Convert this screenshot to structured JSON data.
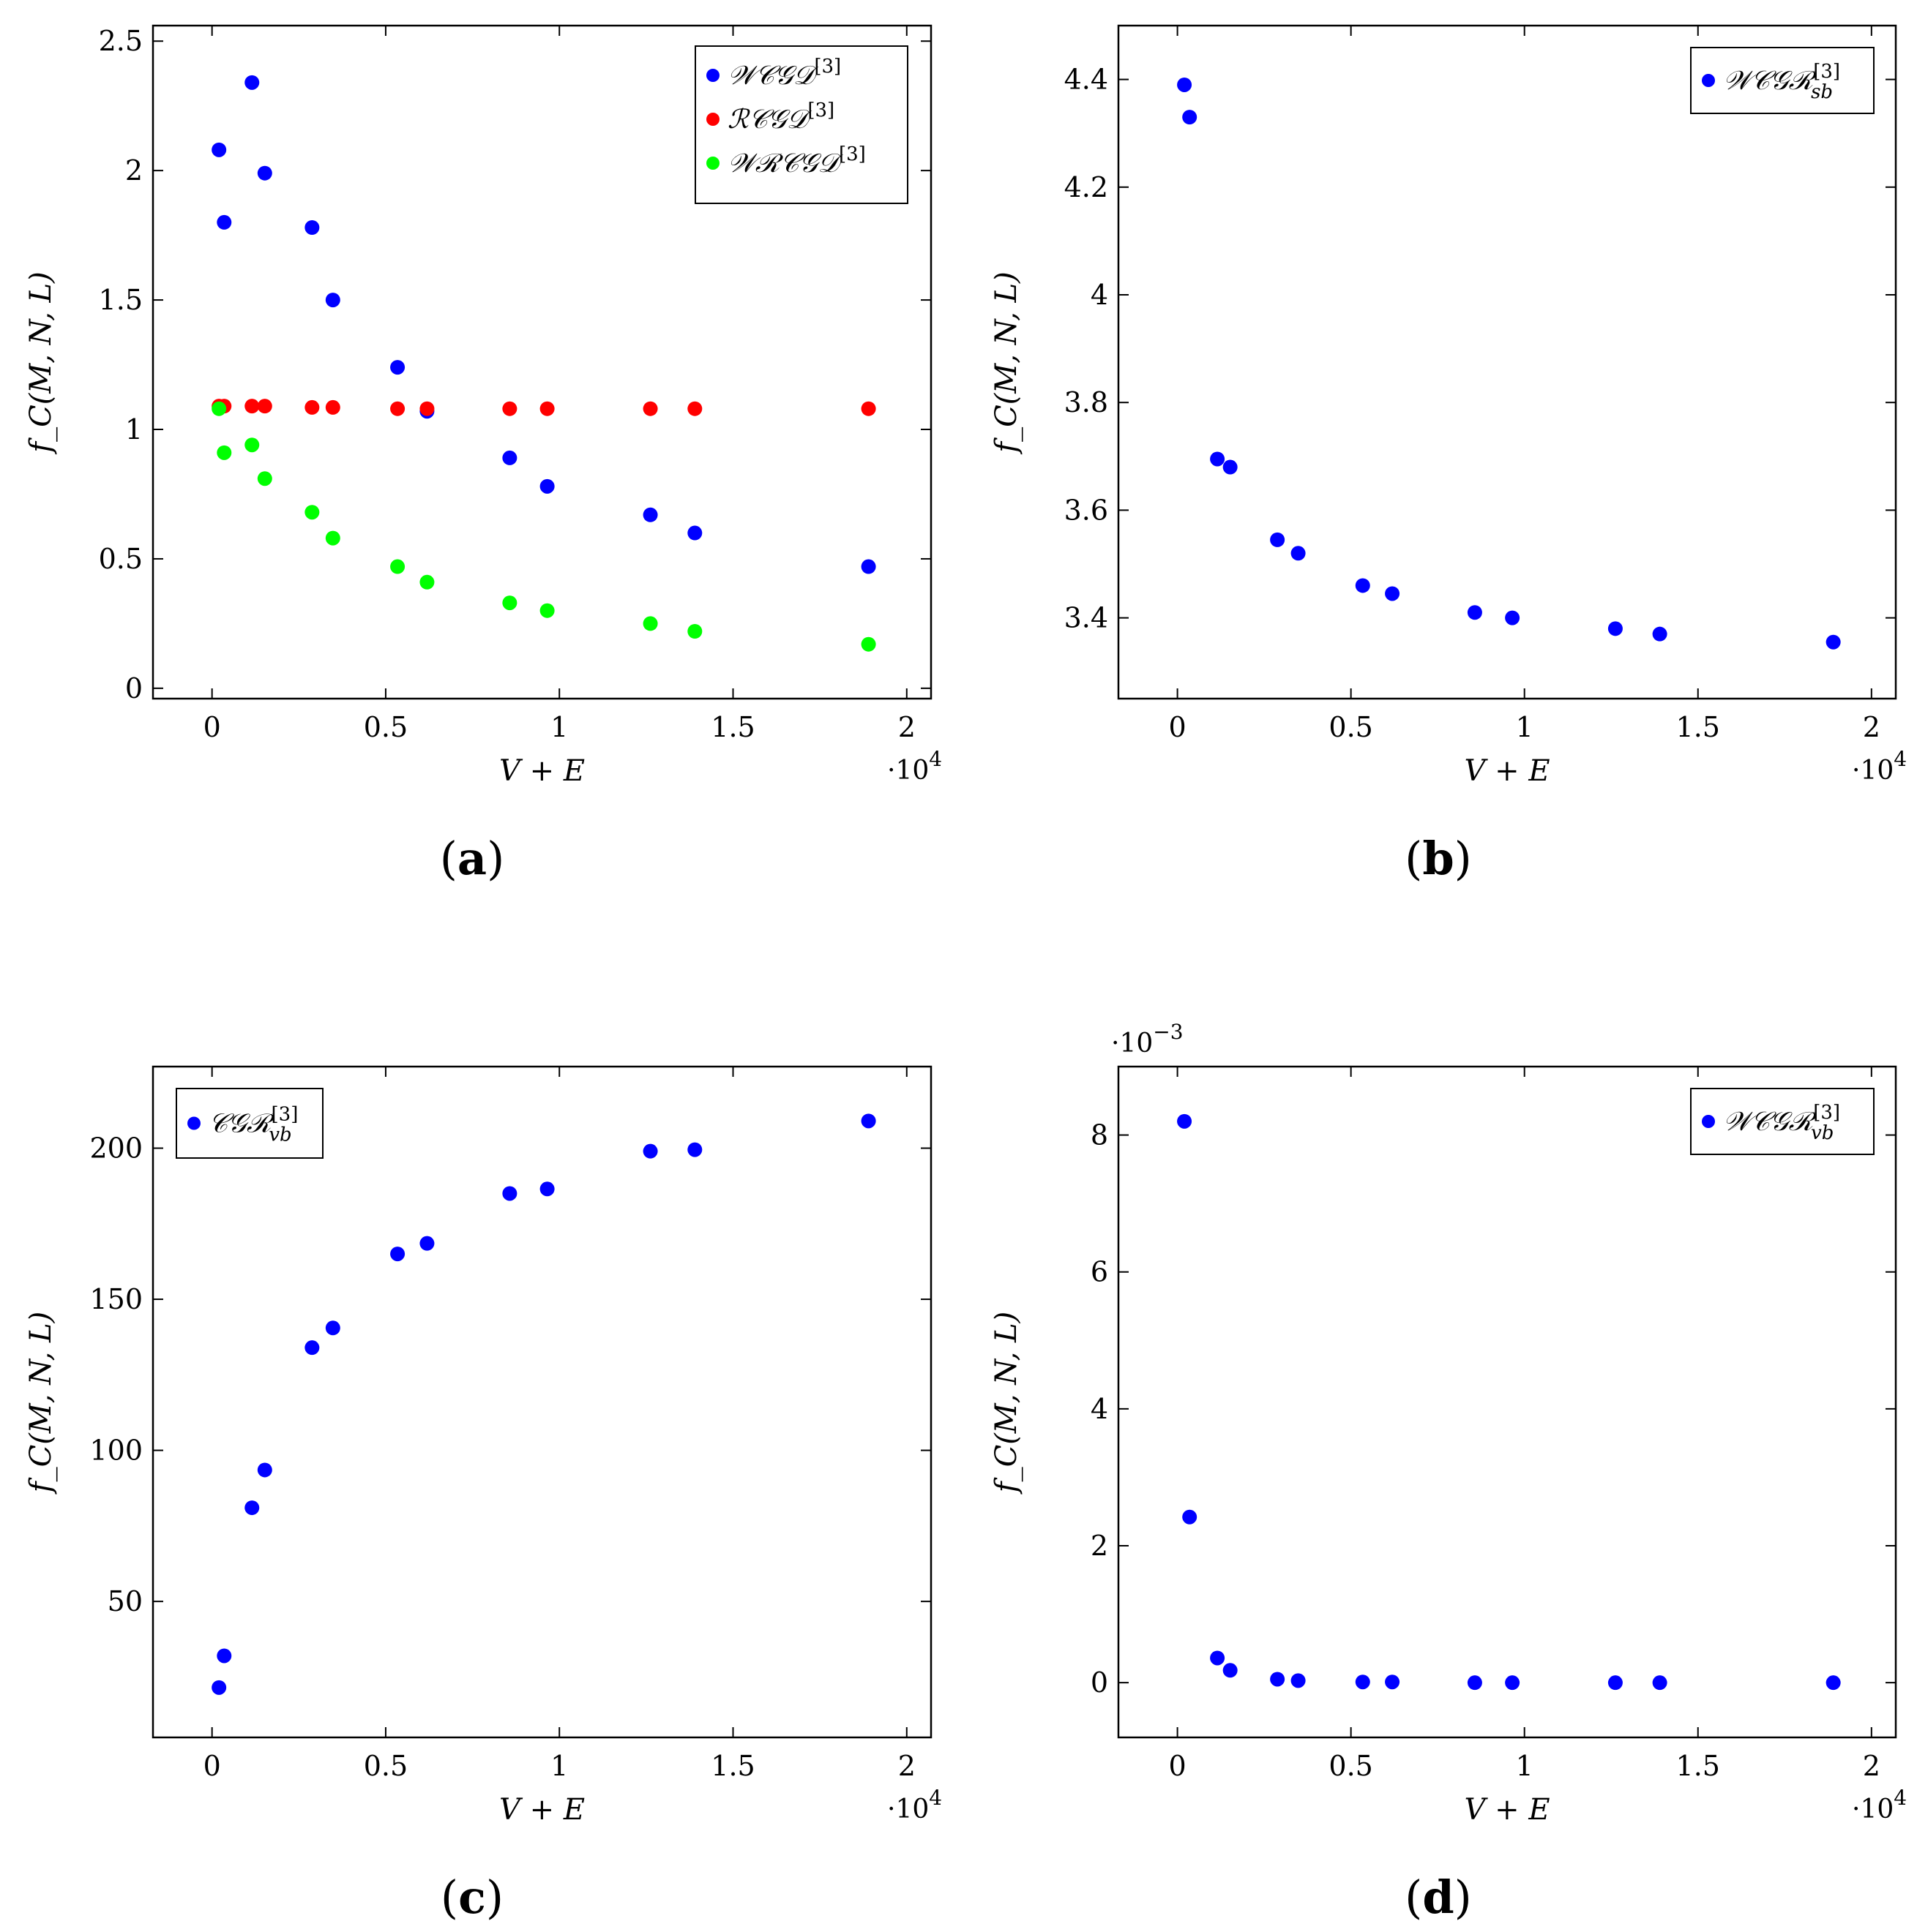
{
  "figure_labels": [
    "a",
    "b",
    "c",
    "d"
  ],
  "chart_data": [
    {
      "id": "a",
      "type": "scatter",
      "xlabel": "V + E",
      "ylabel": "f_C(M, N, L)",
      "x_multiplier": "·10^4",
      "y_multiplier": "",
      "xlim": [
        -0.17,
        2.07
      ],
      "ylim": [
        -0.04,
        2.56
      ],
      "xticks": [
        {
          "value": 0,
          "label": "0"
        },
        {
          "value": 0.5,
          "label": "0.5"
        },
        {
          "value": 1,
          "label": "1"
        },
        {
          "value": 1.5,
          "label": "1.5"
        },
        {
          "value": 2,
          "label": "2"
        }
      ],
      "yticks": [
        {
          "value": 0,
          "label": "0"
        },
        {
          "value": 0.5,
          "label": "0.5"
        },
        {
          "value": 1,
          "label": "1"
        },
        {
          "value": 1.5,
          "label": "1.5"
        },
        {
          "value": 2,
          "label": "2"
        },
        {
          "value": 2.5,
          "label": "2.5"
        }
      ],
      "legend_position": "top-right",
      "series": [
        {
          "name": "WCGD[3]",
          "color": "#0000ff",
          "x": [
            0.02,
            0.035,
            0.115,
            0.152,
            0.288,
            0.348,
            0.534,
            0.619,
            0.857,
            0.965,
            1.262,
            1.39,
            1.89
          ],
          "y": [
            2.08,
            1.8,
            2.34,
            1.99,
            1.78,
            1.5,
            1.24,
            1.07,
            0.89,
            0.78,
            0.67,
            0.6,
            0.47
          ]
        },
        {
          "name": "RCGD[3]",
          "color": "#ff0000",
          "x": [
            0.02,
            0.035,
            0.115,
            0.152,
            0.288,
            0.348,
            0.534,
            0.619,
            0.857,
            0.965,
            1.262,
            1.39,
            1.89
          ],
          "y": [
            1.09,
            1.09,
            1.09,
            1.09,
            1.085,
            1.085,
            1.08,
            1.08,
            1.08,
            1.08,
            1.08,
            1.08,
            1.08
          ]
        },
        {
          "name": "WRCGD[3]",
          "color": "#00ff00",
          "x": [
            0.02,
            0.035,
            0.115,
            0.152,
            0.288,
            0.348,
            0.534,
            0.619,
            0.857,
            0.965,
            1.262,
            1.39,
            1.89
          ],
          "y": [
            1.08,
            0.91,
            0.94,
            0.81,
            0.68,
            0.58,
            0.47,
            0.41,
            0.33,
            0.3,
            0.25,
            0.22,
            0.17
          ]
        }
      ],
      "legend": [
        {
          "main": "𝒲𝒞𝒢𝒟",
          "sup": "[3]",
          "sub": ""
        },
        {
          "main": "ℛ𝒞𝒢𝒟",
          "sup": "[3]",
          "sub": ""
        },
        {
          "main": "𝒲ℛ𝒞𝒢𝒟",
          "sup": "[3]",
          "sub": ""
        }
      ]
    },
    {
      "id": "b",
      "type": "scatter",
      "xlabel": "V + E",
      "ylabel": "f_C(M, N, L)",
      "x_multiplier": "·10^4",
      "y_multiplier": "",
      "xlim": [
        -0.17,
        2.07
      ],
      "ylim": [
        3.25,
        4.5
      ],
      "xticks": [
        {
          "value": 0,
          "label": "0"
        },
        {
          "value": 0.5,
          "label": "0.5"
        },
        {
          "value": 1,
          "label": "1"
        },
        {
          "value": 1.5,
          "label": "1.5"
        },
        {
          "value": 2,
          "label": "2"
        }
      ],
      "yticks": [
        {
          "value": 3.4,
          "label": "3.4"
        },
        {
          "value": 3.6,
          "label": "3.6"
        },
        {
          "value": 3.8,
          "label": "3.8"
        },
        {
          "value": 4,
          "label": "4"
        },
        {
          "value": 4.2,
          "label": "4.2"
        },
        {
          "value": 4.4,
          "label": "4.4"
        }
      ],
      "legend_position": "top-right",
      "series": [
        {
          "name": "WCGR_sb[3]",
          "color": "#0000ff",
          "x": [
            0.02,
            0.035,
            0.115,
            0.152,
            0.288,
            0.348,
            0.534,
            0.619,
            0.857,
            0.965,
            1.262,
            1.39,
            1.89
          ],
          "y": [
            4.39,
            4.33,
            3.695,
            3.68,
            3.545,
            3.52,
            3.46,
            3.445,
            3.41,
            3.4,
            3.38,
            3.37,
            3.355
          ]
        }
      ],
      "legend": [
        {
          "main": "𝒲𝒞𝒢ℛ",
          "sup": "[3]",
          "sub": "sb"
        }
      ]
    },
    {
      "id": "c",
      "type": "scatter",
      "xlabel": "V + E",
      "ylabel": "f_C(M, N, L)",
      "x_multiplier": "·10^4",
      "y_multiplier": "",
      "xlim": [
        -0.17,
        2.07
      ],
      "ylim": [
        5,
        227
      ],
      "xticks": [
        {
          "value": 0,
          "label": "0"
        },
        {
          "value": 0.5,
          "label": "0.5"
        },
        {
          "value": 1,
          "label": "1"
        },
        {
          "value": 1.5,
          "label": "1.5"
        },
        {
          "value": 2,
          "label": "2"
        }
      ],
      "yticks": [
        {
          "value": 50,
          "label": "50"
        },
        {
          "value": 100,
          "label": "100"
        },
        {
          "value": 150,
          "label": "150"
        },
        {
          "value": 200,
          "label": "200"
        }
      ],
      "legend_position": "top-left",
      "series": [
        {
          "name": "CGR_vb[3]",
          "color": "#0000ff",
          "x": [
            0.02,
            0.035,
            0.115,
            0.152,
            0.288,
            0.348,
            0.534,
            0.619,
            0.857,
            0.965,
            1.262,
            1.39,
            1.89
          ],
          "y": [
            21.5,
            32,
            81,
            93.5,
            134,
            140.5,
            165,
            168.5,
            185,
            186.5,
            199,
            199.5,
            209
          ]
        }
      ],
      "legend": [
        {
          "main": "𝒞𝒢ℛ",
          "sup": "[3]",
          "sub": "vb"
        }
      ]
    },
    {
      "id": "d",
      "type": "scatter",
      "xlabel": "V + E",
      "ylabel": "f_C(M, N, L)",
      "x_multiplier": "·10^4",
      "y_multiplier": "·10^−3",
      "xlim": [
        -0.17,
        2.07
      ],
      "ylim": [
        -0.8,
        9.0
      ],
      "xticks": [
        {
          "value": 0,
          "label": "0"
        },
        {
          "value": 0.5,
          "label": "0.5"
        },
        {
          "value": 1,
          "label": "1"
        },
        {
          "value": 1.5,
          "label": "1.5"
        },
        {
          "value": 2,
          "label": "2"
        }
      ],
      "yticks": [
        {
          "value": 0,
          "label": "0"
        },
        {
          "value": 2,
          "label": "2"
        },
        {
          "value": 4,
          "label": "4"
        },
        {
          "value": 6,
          "label": "6"
        },
        {
          "value": 8,
          "label": "8"
        }
      ],
      "legend_position": "top-right",
      "series": [
        {
          "name": "WCGR_vb[3]",
          "color": "#0000ff",
          "x": [
            0.02,
            0.035,
            0.115,
            0.152,
            0.288,
            0.348,
            0.534,
            0.619,
            0.857,
            0.965,
            1.262,
            1.39,
            1.89
          ],
          "y": [
            8.2,
            2.42,
            0.36,
            0.18,
            0.05,
            0.03,
            0.01,
            0.01,
            0.0,
            0.0,
            0.0,
            0.0,
            0.0
          ]
        }
      ],
      "legend": [
        {
          "main": "𝒲𝒞𝒢ℛ",
          "sup": "[3]",
          "sub": "vb"
        }
      ]
    }
  ]
}
